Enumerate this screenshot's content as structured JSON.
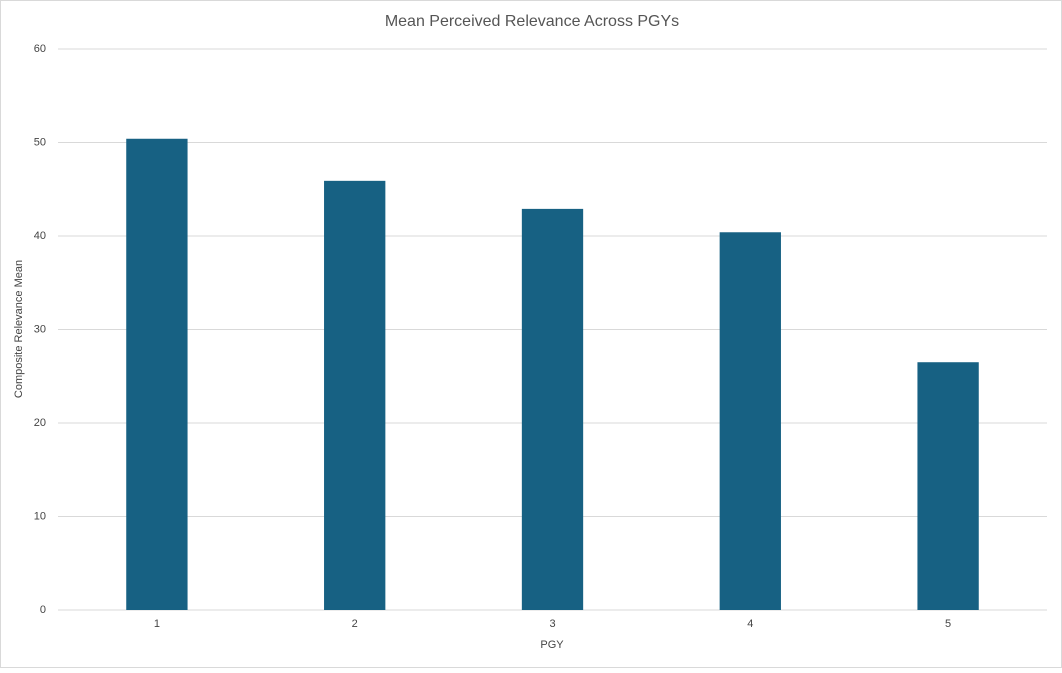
{
  "chart_data": {
    "type": "bar",
    "title": "Mean Perceived Relevance Across PGYs",
    "x_label": "PGY",
    "y_label": "Composite Relevance Mean",
    "categories": [
      "1",
      "2",
      "3",
      "4",
      "5"
    ],
    "values": [
      50.4,
      45.9,
      42.9,
      40.4,
      26.5
    ],
    "color": "#176183",
    "ylim": [
      0,
      60
    ],
    "yticks": [
      0,
      10,
      20,
      30,
      40,
      50,
      60
    ],
    "grid": true
  }
}
